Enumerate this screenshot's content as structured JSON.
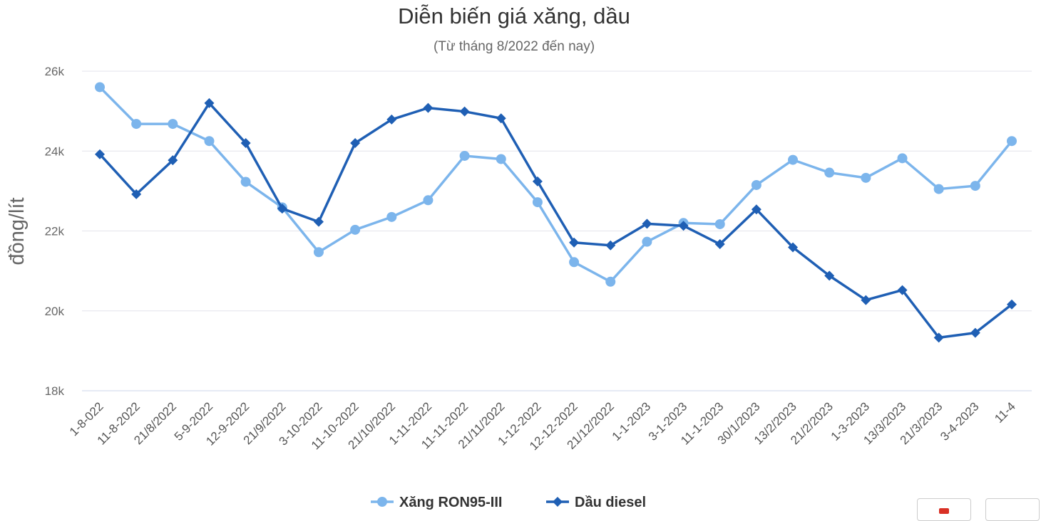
{
  "chart_data": {
    "type": "line",
    "title": "Diễn biến giá xăng, dầu",
    "subtitle": "(Từ tháng 8/2022 đến nay)",
    "ylabel": "đồng/lít",
    "xlabel": "",
    "ylim": [
      18000,
      26000
    ],
    "yticks": [
      18000,
      20000,
      22000,
      24000,
      26000
    ],
    "ytick_labels": [
      "18k",
      "20k",
      "22k",
      "24k",
      "26k"
    ],
    "grid": true,
    "legend_position": "bottom-center",
    "categories": [
      "1-8-022",
      "11-8-2022",
      "21/8/2022",
      "5-9-2022",
      "12-9-2022",
      "21/9/2022",
      "3-10-2022",
      "11-10-2022",
      "21/10/2022",
      "1-11-2022",
      "11-11-2022",
      "21/11/2022",
      "1-12-2022",
      "12-12-2022",
      "21/12/2022",
      "1-1-2023",
      "3-1-2023",
      "11-1-2023",
      "30/1/2023",
      "13/2/2023",
      "21/2/2023",
      "1-3-2023",
      "13/3/2023",
      "21/3/2023",
      "3-4-2023",
      "11-4"
    ],
    "series": [
      {
        "name": "Xăng RON95-III",
        "color": "#7cb5ec",
        "marker": "circle",
        "values": [
          25600,
          24680,
          24680,
          24250,
          23230,
          22590,
          21470,
          22030,
          22350,
          22770,
          23880,
          23800,
          22720,
          21220,
          20730,
          21730,
          22200,
          22170,
          23150,
          23780,
          23460,
          23330,
          23820,
          23050,
          23130,
          24250
        ]
      },
      {
        "name": "Dầu diesel",
        "color": "#1f5fb4",
        "marker": "diamond",
        "values": [
          23920,
          22920,
          23770,
          25200,
          24200,
          22560,
          22230,
          24200,
          24790,
          25080,
          24990,
          24820,
          23240,
          21710,
          21640,
          22180,
          22130,
          21670,
          22540,
          21590,
          20880,
          20270,
          20520,
          19330,
          19450,
          20160
        ]
      }
    ]
  }
}
